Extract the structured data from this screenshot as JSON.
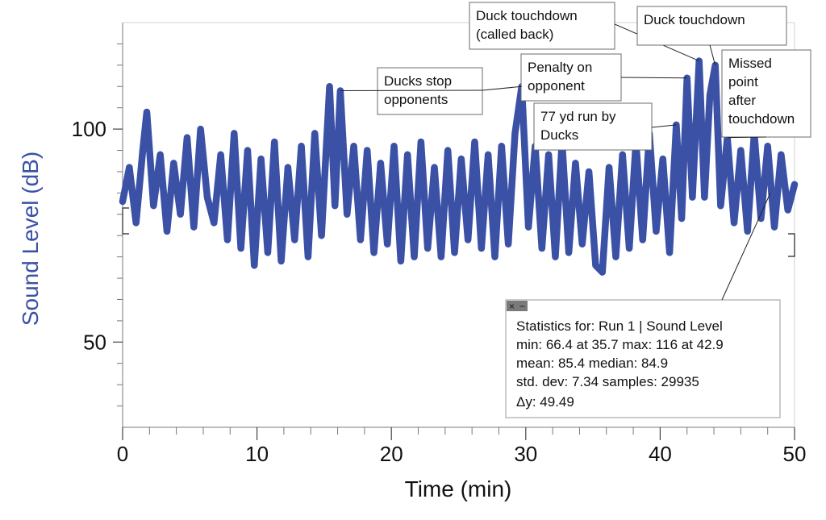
{
  "chart_data": {
    "type": "line",
    "title": "",
    "xlabel": "Time (min)",
    "ylabel": "Sound Level (dB)",
    "xlim": [
      0,
      50
    ],
    "ylim": [
      30,
      125
    ],
    "x_ticks": [
      {
        "value": 0,
        "label": "0"
      },
      {
        "value": 10,
        "label": "10"
      },
      {
        "value": 20,
        "label": "20"
      },
      {
        "value": 30,
        "label": "30"
      },
      {
        "value": 40,
        "label": "40"
      },
      {
        "value": 50,
        "label": "50"
      }
    ],
    "y_ticks": [
      {
        "value": 50,
        "label": "50"
      },
      {
        "value": 100,
        "label": "100"
      }
    ],
    "grid": false,
    "line_color": "#3a51a6",
    "axis_label_color": "#3a51a6",
    "series": [
      {
        "values": [
          {
            "x": 0.0,
            "y": 83
          },
          {
            "x": 0.5,
            "y": 91
          },
          {
            "x": 1.0,
            "y": 78
          },
          {
            "x": 1.5,
            "y": 95
          },
          {
            "x": 1.8,
            "y": 104
          },
          {
            "x": 2.3,
            "y": 82
          },
          {
            "x": 2.8,
            "y": 94
          },
          {
            "x": 3.3,
            "y": 76
          },
          {
            "x": 3.8,
            "y": 92
          },
          {
            "x": 4.3,
            "y": 80
          },
          {
            "x": 4.8,
            "y": 98
          },
          {
            "x": 5.3,
            "y": 77
          },
          {
            "x": 5.8,
            "y": 100
          },
          {
            "x": 6.3,
            "y": 84
          },
          {
            "x": 6.8,
            "y": 78
          },
          {
            "x": 7.3,
            "y": 94
          },
          {
            "x": 7.8,
            "y": 74
          },
          {
            "x": 8.3,
            "y": 99
          },
          {
            "x": 8.8,
            "y": 72
          },
          {
            "x": 9.3,
            "y": 95
          },
          {
            "x": 9.8,
            "y": 68
          },
          {
            "x": 10.3,
            "y": 93
          },
          {
            "x": 10.8,
            "y": 71
          },
          {
            "x": 11.3,
            "y": 97
          },
          {
            "x": 11.8,
            "y": 69
          },
          {
            "x": 12.3,
            "y": 91
          },
          {
            "x": 12.8,
            "y": 74
          },
          {
            "x": 13.3,
            "y": 96
          },
          {
            "x": 13.8,
            "y": 70
          },
          {
            "x": 14.3,
            "y": 99
          },
          {
            "x": 14.8,
            "y": 75
          },
          {
            "x": 15.4,
            "y": 110
          },
          {
            "x": 15.8,
            "y": 82
          },
          {
            "x": 16.2,
            "y": 109
          },
          {
            "x": 16.7,
            "y": 80
          },
          {
            "x": 17.2,
            "y": 96
          },
          {
            "x": 17.7,
            "y": 74
          },
          {
            "x": 18.2,
            "y": 95
          },
          {
            "x": 18.7,
            "y": 71
          },
          {
            "x": 19.2,
            "y": 92
          },
          {
            "x": 19.7,
            "y": 73
          },
          {
            "x": 20.2,
            "y": 96
          },
          {
            "x": 20.7,
            "y": 69
          },
          {
            "x": 21.2,
            "y": 94
          },
          {
            "x": 21.7,
            "y": 70
          },
          {
            "x": 22.2,
            "y": 97
          },
          {
            "x": 22.7,
            "y": 72
          },
          {
            "x": 23.2,
            "y": 91
          },
          {
            "x": 23.7,
            "y": 70
          },
          {
            "x": 24.2,
            "y": 95
          },
          {
            "x": 24.7,
            "y": 71
          },
          {
            "x": 25.2,
            "y": 93
          },
          {
            "x": 25.7,
            "y": 74
          },
          {
            "x": 26.2,
            "y": 97
          },
          {
            "x": 26.7,
            "y": 72
          },
          {
            "x": 27.2,
            "y": 94
          },
          {
            "x": 27.7,
            "y": 70
          },
          {
            "x": 28.2,
            "y": 96
          },
          {
            "x": 28.7,
            "y": 73
          },
          {
            "x": 29.2,
            "y": 99
          },
          {
            "x": 29.7,
            "y": 110
          },
          {
            "x": 30.2,
            "y": 77
          },
          {
            "x": 30.7,
            "y": 96
          },
          {
            "x": 31.2,
            "y": 72
          },
          {
            "x": 31.7,
            "y": 94
          },
          {
            "x": 32.2,
            "y": 70
          },
          {
            "x": 32.7,
            "y": 97
          },
          {
            "x": 33.2,
            "y": 71
          },
          {
            "x": 33.7,
            "y": 92
          },
          {
            "x": 34.2,
            "y": 73
          },
          {
            "x": 34.7,
            "y": 90
          },
          {
            "x": 35.2,
            "y": 68
          },
          {
            "x": 35.7,
            "y": 66.4
          },
          {
            "x": 36.2,
            "y": 91
          },
          {
            "x": 36.7,
            "y": 70
          },
          {
            "x": 37.2,
            "y": 94
          },
          {
            "x": 37.7,
            "y": 72
          },
          {
            "x": 38.2,
            "y": 97
          },
          {
            "x": 38.7,
            "y": 74
          },
          {
            "x": 39.2,
            "y": 99
          },
          {
            "x": 39.7,
            "y": 76
          },
          {
            "x": 40.2,
            "y": 93
          },
          {
            "x": 40.7,
            "y": 71
          },
          {
            "x": 41.2,
            "y": 101
          },
          {
            "x": 41.6,
            "y": 79
          },
          {
            "x": 42.0,
            "y": 112
          },
          {
            "x": 42.4,
            "y": 84
          },
          {
            "x": 42.9,
            "y": 116
          },
          {
            "x": 43.3,
            "y": 84
          },
          {
            "x": 43.7,
            "y": 108
          },
          {
            "x": 44.1,
            "y": 115
          },
          {
            "x": 44.5,
            "y": 82
          },
          {
            "x": 45.0,
            "y": 98
          },
          {
            "x": 45.5,
            "y": 78
          },
          {
            "x": 46.0,
            "y": 95
          },
          {
            "x": 46.5,
            "y": 76
          },
          {
            "x": 47.0,
            "y": 99
          },
          {
            "x": 47.5,
            "y": 79
          },
          {
            "x": 48.0,
            "y": 96
          },
          {
            "x": 48.5,
            "y": 77
          },
          {
            "x": 49.0,
            "y": 94
          },
          {
            "x": 49.5,
            "y": 81
          },
          {
            "x": 50.0,
            "y": 87
          }
        ]
      }
    ],
    "annotations": [
      {
        "lines": [
          "Ducks stop",
          "opponents"
        ],
        "target": {
          "x": 16.2,
          "y": 109
        }
      },
      {
        "lines": [
          "Duck touchdown",
          "(called back)"
        ],
        "target": {
          "x": 42.9,
          "y": 116
        }
      },
      {
        "lines": [
          "Duck touchdown"
        ],
        "target": {
          "x": 44.1,
          "y": 115
        }
      },
      {
        "lines": [
          "Penalty on",
          "opponent"
        ],
        "target": {
          "x": 42.0,
          "y": 112
        }
      },
      {
        "lines": [
          "Missed",
          "point",
          "after",
          "touchdown"
        ],
        "target": {
          "x": 45.0,
          "y": 98
        }
      },
      {
        "lines": [
          "77 yd run by",
          "Ducks"
        ],
        "target": {
          "x": 41.2,
          "y": 101
        }
      },
      {
        "lines": [
          "Ducks stop",
          "opponents"
        ],
        "target": {
          "x": 29.7,
          "y": 110
        }
      }
    ],
    "statistics": {
      "controls": [
        "×",
        "−"
      ],
      "lines": [
        "Statistics for: Run 1 | Sound Level",
        "min: 66.4 at 35.7 max: 116 at 42.9",
        "mean: 85.4 median: 84.9",
        "std. dev: 7.34 samples: 29935",
        "Δy: 49.49"
      ],
      "range_markers": {
        "start": 0,
        "end": 50
      }
    }
  }
}
